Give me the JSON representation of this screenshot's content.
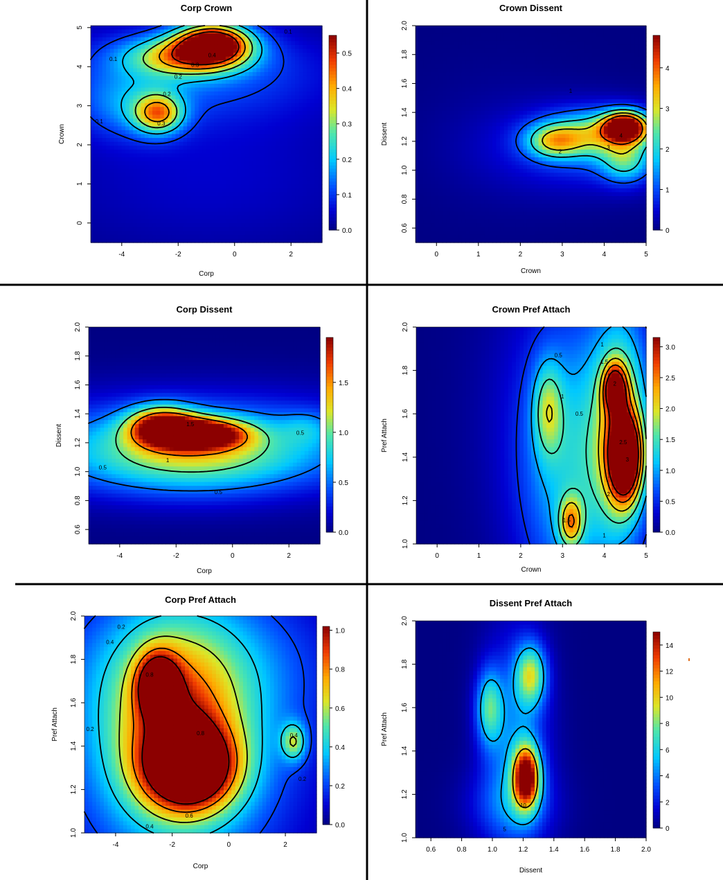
{
  "chart_data": [
    {
      "type": "heatmap",
      "title": "Corp Crown",
      "xlabel": "Corp",
      "ylabel": "Crown",
      "xlim": [
        -5.1,
        3.1
      ],
      "ylim": [
        -0.5,
        5.05
      ],
      "xticks": [
        "-4",
        "-2",
        "0",
        "2"
      ],
      "xtick_values": [
        -4,
        -2,
        0,
        2
      ],
      "yticks": [
        "0",
        "1",
        "2",
        "3",
        "4",
        "5"
      ],
      "ytick_values": [
        0,
        1,
        2,
        3,
        4,
        5
      ],
      "zlim": [
        0,
        0.55
      ],
      "colorbar_ticks": [
        "0.0",
        "0.1",
        "0.2",
        "0.3",
        "0.4",
        "0.5"
      ],
      "colorbar_values": [
        0,
        0.1,
        0.2,
        0.3,
        0.4,
        0.5
      ],
      "contour_levels": [
        0.1,
        0.2,
        0.3,
        0.4,
        0.5
      ],
      "contour_labels": [
        {
          "text": "0.1",
          "x": -4.3,
          "y": 4.2
        },
        {
          "text": "0.1",
          "x": 1.9,
          "y": 4.9
        },
        {
          "text": "0.1",
          "x": -4.8,
          "y": 2.6
        },
        {
          "text": "0.2",
          "x": -2.0,
          "y": 3.75
        },
        {
          "text": "0.2",
          "x": -2.4,
          "y": 3.3
        },
        {
          "text": "0.3",
          "x": -1.4,
          "y": 4.05
        },
        {
          "text": "0.3",
          "x": -2.6,
          "y": 2.55
        },
        {
          "text": "0.4",
          "x": -0.8,
          "y": 4.3
        }
      ],
      "peaks": [
        {
          "x": -0.75,
          "y": 4.62,
          "value": 0.55
        },
        {
          "x": -2.7,
          "y": 2.82,
          "value": 0.35
        }
      ]
    },
    {
      "type": "heatmap",
      "title": "Crown Dissent",
      "xlabel": "Crown",
      "ylabel": "Dissent",
      "xlim": [
        -0.5,
        5.0
      ],
      "ylim": [
        0.5,
        2.0
      ],
      "xticks": [
        "0",
        "1",
        "2",
        "3",
        "4",
        "5"
      ],
      "xtick_values": [
        0,
        1,
        2,
        3,
        4,
        5
      ],
      "yticks": [
        "0.6",
        "0.8",
        "1.0",
        "1.2",
        "1.4",
        "1.6",
        "1.8",
        "2.0"
      ],
      "ytick_values": [
        0.6,
        0.8,
        1.0,
        1.2,
        1.4,
        1.6,
        1.8,
        2.0
      ],
      "zlim": [
        0,
        4.8
      ],
      "colorbar_ticks": [
        "0",
        "1",
        "2",
        "3",
        "4"
      ],
      "colorbar_values": [
        0,
        1,
        2,
        3,
        4
      ],
      "contour_levels": [
        1,
        2,
        3,
        4
      ],
      "contour_labels": [
        {
          "text": "1",
          "x": 3.2,
          "y": 1.55
        },
        {
          "text": "2",
          "x": 2.95,
          "y": 1.13
        },
        {
          "text": "3",
          "x": 4.1,
          "y": 1.16
        },
        {
          "text": "4",
          "x": 4.4,
          "y": 1.24
        }
      ],
      "peaks": [
        {
          "x": 4.5,
          "y": 1.3,
          "value": 4.8
        },
        {
          "x": 2.9,
          "y": 1.2,
          "value": 2.3
        }
      ]
    },
    {
      "type": "heatmap",
      "title": "Corp Dissent",
      "xlabel": "Corp",
      "ylabel": "Dissent",
      "xlim": [
        -5.1,
        3.1
      ],
      "ylim": [
        0.5,
        2.0
      ],
      "xticks": [
        "-4",
        "-2",
        "0",
        "2"
      ],
      "xtick_values": [
        -4,
        -2,
        0,
        2
      ],
      "yticks": [
        "0.6",
        "0.8",
        "1.0",
        "1.2",
        "1.4",
        "1.6",
        "1.8",
        "2.0"
      ],
      "ytick_values": [
        0.6,
        0.8,
        1.0,
        1.2,
        1.4,
        1.6,
        1.8,
        2.0
      ],
      "zlim": [
        0,
        1.95
      ],
      "colorbar_ticks": [
        "0.0",
        "0.5",
        "1.0",
        "1.5"
      ],
      "colorbar_values": [
        0,
        0.5,
        1.0,
        1.5
      ],
      "contour_levels": [
        0.5,
        1,
        1.5
      ],
      "contour_labels": [
        {
          "text": "0.5",
          "x": -4.6,
          "y": 1.03
        },
        {
          "text": "0.5",
          "x": -0.5,
          "y": 0.86
        },
        {
          "text": "0.5",
          "x": 2.4,
          "y": 1.27
        },
        {
          "text": "1",
          "x": -2.3,
          "y": 1.08
        },
        {
          "text": "1.5",
          "x": -1.5,
          "y": 1.33
        }
      ],
      "peaks": [
        {
          "x": -1.2,
          "y": 1.26,
          "value": 1.95
        },
        {
          "x": -2.4,
          "y": 1.37,
          "value": 1.7
        }
      ]
    },
    {
      "type": "heatmap",
      "title": "Crown Pref Attach",
      "xlabel": "Crown",
      "ylabel": "Pref Attach",
      "xlim": [
        -0.5,
        5.0
      ],
      "ylim": [
        1.0,
        2.0
      ],
      "xticks": [
        "0",
        "1",
        "2",
        "3",
        "4",
        "5"
      ],
      "xtick_values": [
        0,
        1,
        2,
        3,
        4,
        5
      ],
      "yticks": [
        "1.0",
        "1.2",
        "1.4",
        "1.6",
        "1.8",
        "2.0"
      ],
      "ytick_values": [
        1.0,
        1.2,
        1.4,
        1.6,
        1.8,
        2.0
      ],
      "zlim": [
        0,
        3.15
      ],
      "colorbar_ticks": [
        "0.0",
        "0.5",
        "1.0",
        "1.5",
        "2.0",
        "2.5",
        "3.0"
      ],
      "colorbar_values": [
        0,
        0.5,
        1.0,
        1.5,
        2.0,
        2.5,
        3.0
      ],
      "contour_levels": [
        0.5,
        1,
        1.5,
        2,
        2.5,
        3
      ],
      "contour_labels": [
        {
          "text": "0.5",
          "x": 2.9,
          "y": 1.87
        },
        {
          "text": "1",
          "x": 3.0,
          "y": 1.68
        },
        {
          "text": "0.5",
          "x": 3.4,
          "y": 1.6
        },
        {
          "text": "1",
          "x": 3.95,
          "y": 1.92
        },
        {
          "text": "1.5",
          "x": 4.0,
          "y": 1.84
        },
        {
          "text": "2",
          "x": 4.25,
          "y": 1.74
        },
        {
          "text": "2.5",
          "x": 4.45,
          "y": 1.47
        },
        {
          "text": "3",
          "x": 4.55,
          "y": 1.39
        },
        {
          "text": "2",
          "x": 4.1,
          "y": 1.23
        },
        {
          "text": "1.5",
          "x": 3.1,
          "y": 1.11
        },
        {
          "text": "1",
          "x": 4.0,
          "y": 1.04
        }
      ],
      "peaks": [
        {
          "x": 4.5,
          "y": 1.4,
          "value": 3.15
        },
        {
          "x": 4.25,
          "y": 1.72,
          "value": 2.2
        },
        {
          "x": 2.65,
          "y": 1.62,
          "value": 1.2
        },
        {
          "x": 3.2,
          "y": 1.1,
          "value": 1.6
        }
      ]
    },
    {
      "type": "heatmap",
      "title": "Corp Pref Attach",
      "xlabel": "Corp",
      "ylabel": "Pref Attach",
      "xlim": [
        -5.1,
        3.1
      ],
      "ylim": [
        1.0,
        2.0
      ],
      "xticks": [
        "-4",
        "-2",
        "0",
        "2"
      ],
      "xtick_values": [
        -4,
        -2,
        0,
        2
      ],
      "yticks": [
        "1.0",
        "1.2",
        "1.4",
        "1.6",
        "1.8",
        "2.0"
      ],
      "ytick_values": [
        1.0,
        1.2,
        1.4,
        1.6,
        1.8,
        2.0
      ],
      "zlim": [
        0,
        1.02
      ],
      "colorbar_ticks": [
        "0.0",
        "0.2",
        "0.4",
        "0.6",
        "0.8",
        "1.0"
      ],
      "colorbar_values": [
        0,
        0.2,
        0.4,
        0.6,
        0.8,
        1.0
      ],
      "contour_levels": [
        0.2,
        0.4,
        0.6,
        0.8,
        1.0
      ],
      "contour_labels": [
        {
          "text": "0.2",
          "x": -3.8,
          "y": 1.95
        },
        {
          "text": "0.4",
          "x": -4.2,
          "y": 1.88
        },
        {
          "text": "0.8",
          "x": -2.8,
          "y": 1.73
        },
        {
          "text": "0.2",
          "x": -4.9,
          "y": 1.48
        },
        {
          "text": "0.8",
          "x": -1.0,
          "y": 1.46
        },
        {
          "text": "0.4",
          "x": 2.3,
          "y": 1.45
        },
        {
          "text": "0.2",
          "x": 2.6,
          "y": 1.25
        },
        {
          "text": "0.6",
          "x": -1.4,
          "y": 1.08
        },
        {
          "text": "0.4",
          "x": -2.8,
          "y": 1.03
        }
      ],
      "peaks": [
        {
          "x": -1.4,
          "y": 1.3,
          "value": 1.02
        },
        {
          "x": -2.5,
          "y": 1.68,
          "value": 0.85
        },
        {
          "x": 2.3,
          "y": 1.42,
          "value": 0.45
        }
      ]
    },
    {
      "type": "heatmap",
      "title": "Dissent Pref Attach",
      "xlabel": "Dissent",
      "ylabel": "Pref Attach",
      "xlim": [
        0.5,
        2.0
      ],
      "ylim": [
        1.0,
        2.0
      ],
      "xticks": [
        "0.6",
        "0.8",
        "1.0",
        "1.2",
        "1.4",
        "1.6",
        "1.8",
        "2.0"
      ],
      "xtick_values": [
        0.6,
        0.8,
        1.0,
        1.2,
        1.4,
        1.6,
        1.8,
        2.0
      ],
      "yticks": [
        "1.0",
        "1.2",
        "1.4",
        "1.6",
        "1.8",
        "2.0"
      ],
      "ytick_values": [
        1.0,
        1.2,
        1.4,
        1.6,
        1.8,
        2.0
      ],
      "zlim": [
        0,
        15
      ],
      "colorbar_ticks": [
        "0",
        "2",
        "4",
        "6",
        "8",
        "10",
        "12",
        "14"
      ],
      "colorbar_values": [
        0,
        2,
        4,
        6,
        8,
        10,
        12,
        14
      ],
      "contour_levels": [
        5,
        10
      ],
      "contour_labels": [
        {
          "text": "5",
          "x": 1.08,
          "y": 1.04
        },
        {
          "text": "10",
          "x": 1.2,
          "y": 1.15
        }
      ],
      "peaks": [
        {
          "x": 1.22,
          "y": 1.3,
          "value": 15
        },
        {
          "x": 1.25,
          "y": 1.75,
          "value": 8
        },
        {
          "x": 0.98,
          "y": 1.6,
          "value": 6.5
        }
      ]
    }
  ]
}
